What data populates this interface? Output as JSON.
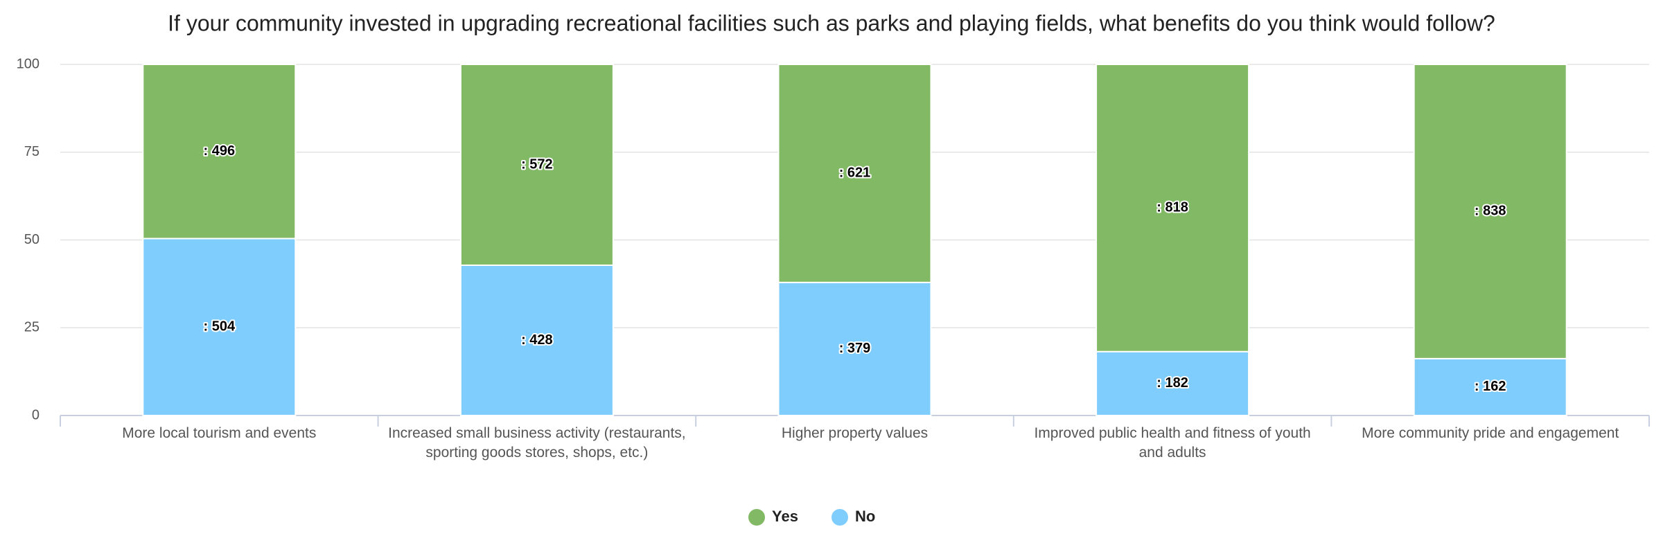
{
  "chart_data": {
    "type": "bar",
    "stacking": "percent",
    "title": "If your community invested in upgrading recreational facilities such as parks and playing fields, what benefits do you think would follow?",
    "categories": [
      "More local tourism and events",
      "Increased small business activity (restaurants, sporting goods stores, shops, etc.)",
      "Higher property values",
      "Improved public health and fitness of youth and adults",
      "More community pride and engagement"
    ],
    "series": [
      {
        "name": "Yes",
        "color": "#82b965",
        "values": [
          496,
          572,
          621,
          818,
          838
        ],
        "value_labels": [
          ": 496",
          ": 572",
          ": 621",
          ": 818",
          ": 838"
        ]
      },
      {
        "name": "No",
        "color": "#7fcdfd",
        "values": [
          504,
          428,
          379,
          182,
          162
        ],
        "value_labels": [
          ": 504",
          ": 428",
          ": 379",
          ": 182",
          ": 162"
        ]
      }
    ],
    "ylim": [
      0,
      100
    ],
    "yticks": [
      0,
      25,
      50,
      75,
      100
    ],
    "grid": true,
    "legend": "bottom"
  }
}
